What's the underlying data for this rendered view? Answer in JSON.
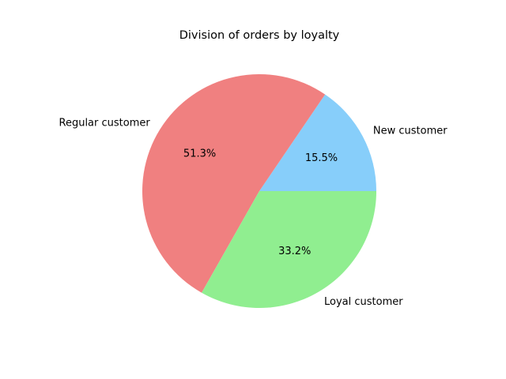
{
  "chart_data": {
    "type": "pie",
    "title": "Division of orders by loyalty",
    "slices": [
      {
        "label": "New customer",
        "value": 15.5,
        "percent_label": "15.5%",
        "color": "#87CEFA"
      },
      {
        "label": "Regular customer",
        "value": 51.3,
        "percent_label": "51.3%",
        "color": "#F08080"
      },
      {
        "label": "Loyal customer",
        "value": 33.2,
        "percent_label": "33.2%",
        "color": "#90EE90"
      }
    ],
    "start_angle_deg": 0,
    "direction": "counterclockwise",
    "legend": "none"
  }
}
